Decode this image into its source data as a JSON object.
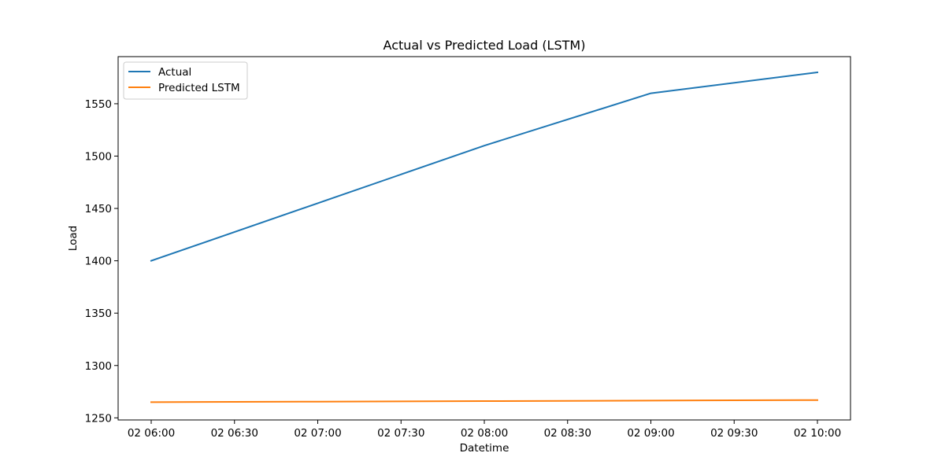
{
  "chart_data": {
    "type": "line",
    "title": "Actual vs Predicted Load (LSTM)",
    "xlabel": "Datetime",
    "ylabel": "Load",
    "x": [
      "02 06:00",
      "02 07:00",
      "02 08:00",
      "02 09:00",
      "02 10:00"
    ],
    "x_ticks": [
      "02 06:00",
      "02 06:30",
      "02 07:00",
      "02 07:30",
      "02 08:00",
      "02 08:30",
      "02 09:00",
      "02 09:30",
      "02 10:00"
    ],
    "y_ticks": [
      1250,
      1300,
      1350,
      1400,
      1450,
      1500,
      1550
    ],
    "ylim": [
      1248,
      1595
    ],
    "grid": false,
    "legend_position": "top-left",
    "series": [
      {
        "name": "Actual",
        "color": "#1f77b4",
        "values": [
          1400,
          1455,
          1510,
          1560,
          1580
        ]
      },
      {
        "name": "Predicted LSTM",
        "color": "#ff7f0e",
        "values": [
          1265.0,
          1265.5,
          1266.0,
          1266.5,
          1267.0
        ]
      }
    ]
  }
}
